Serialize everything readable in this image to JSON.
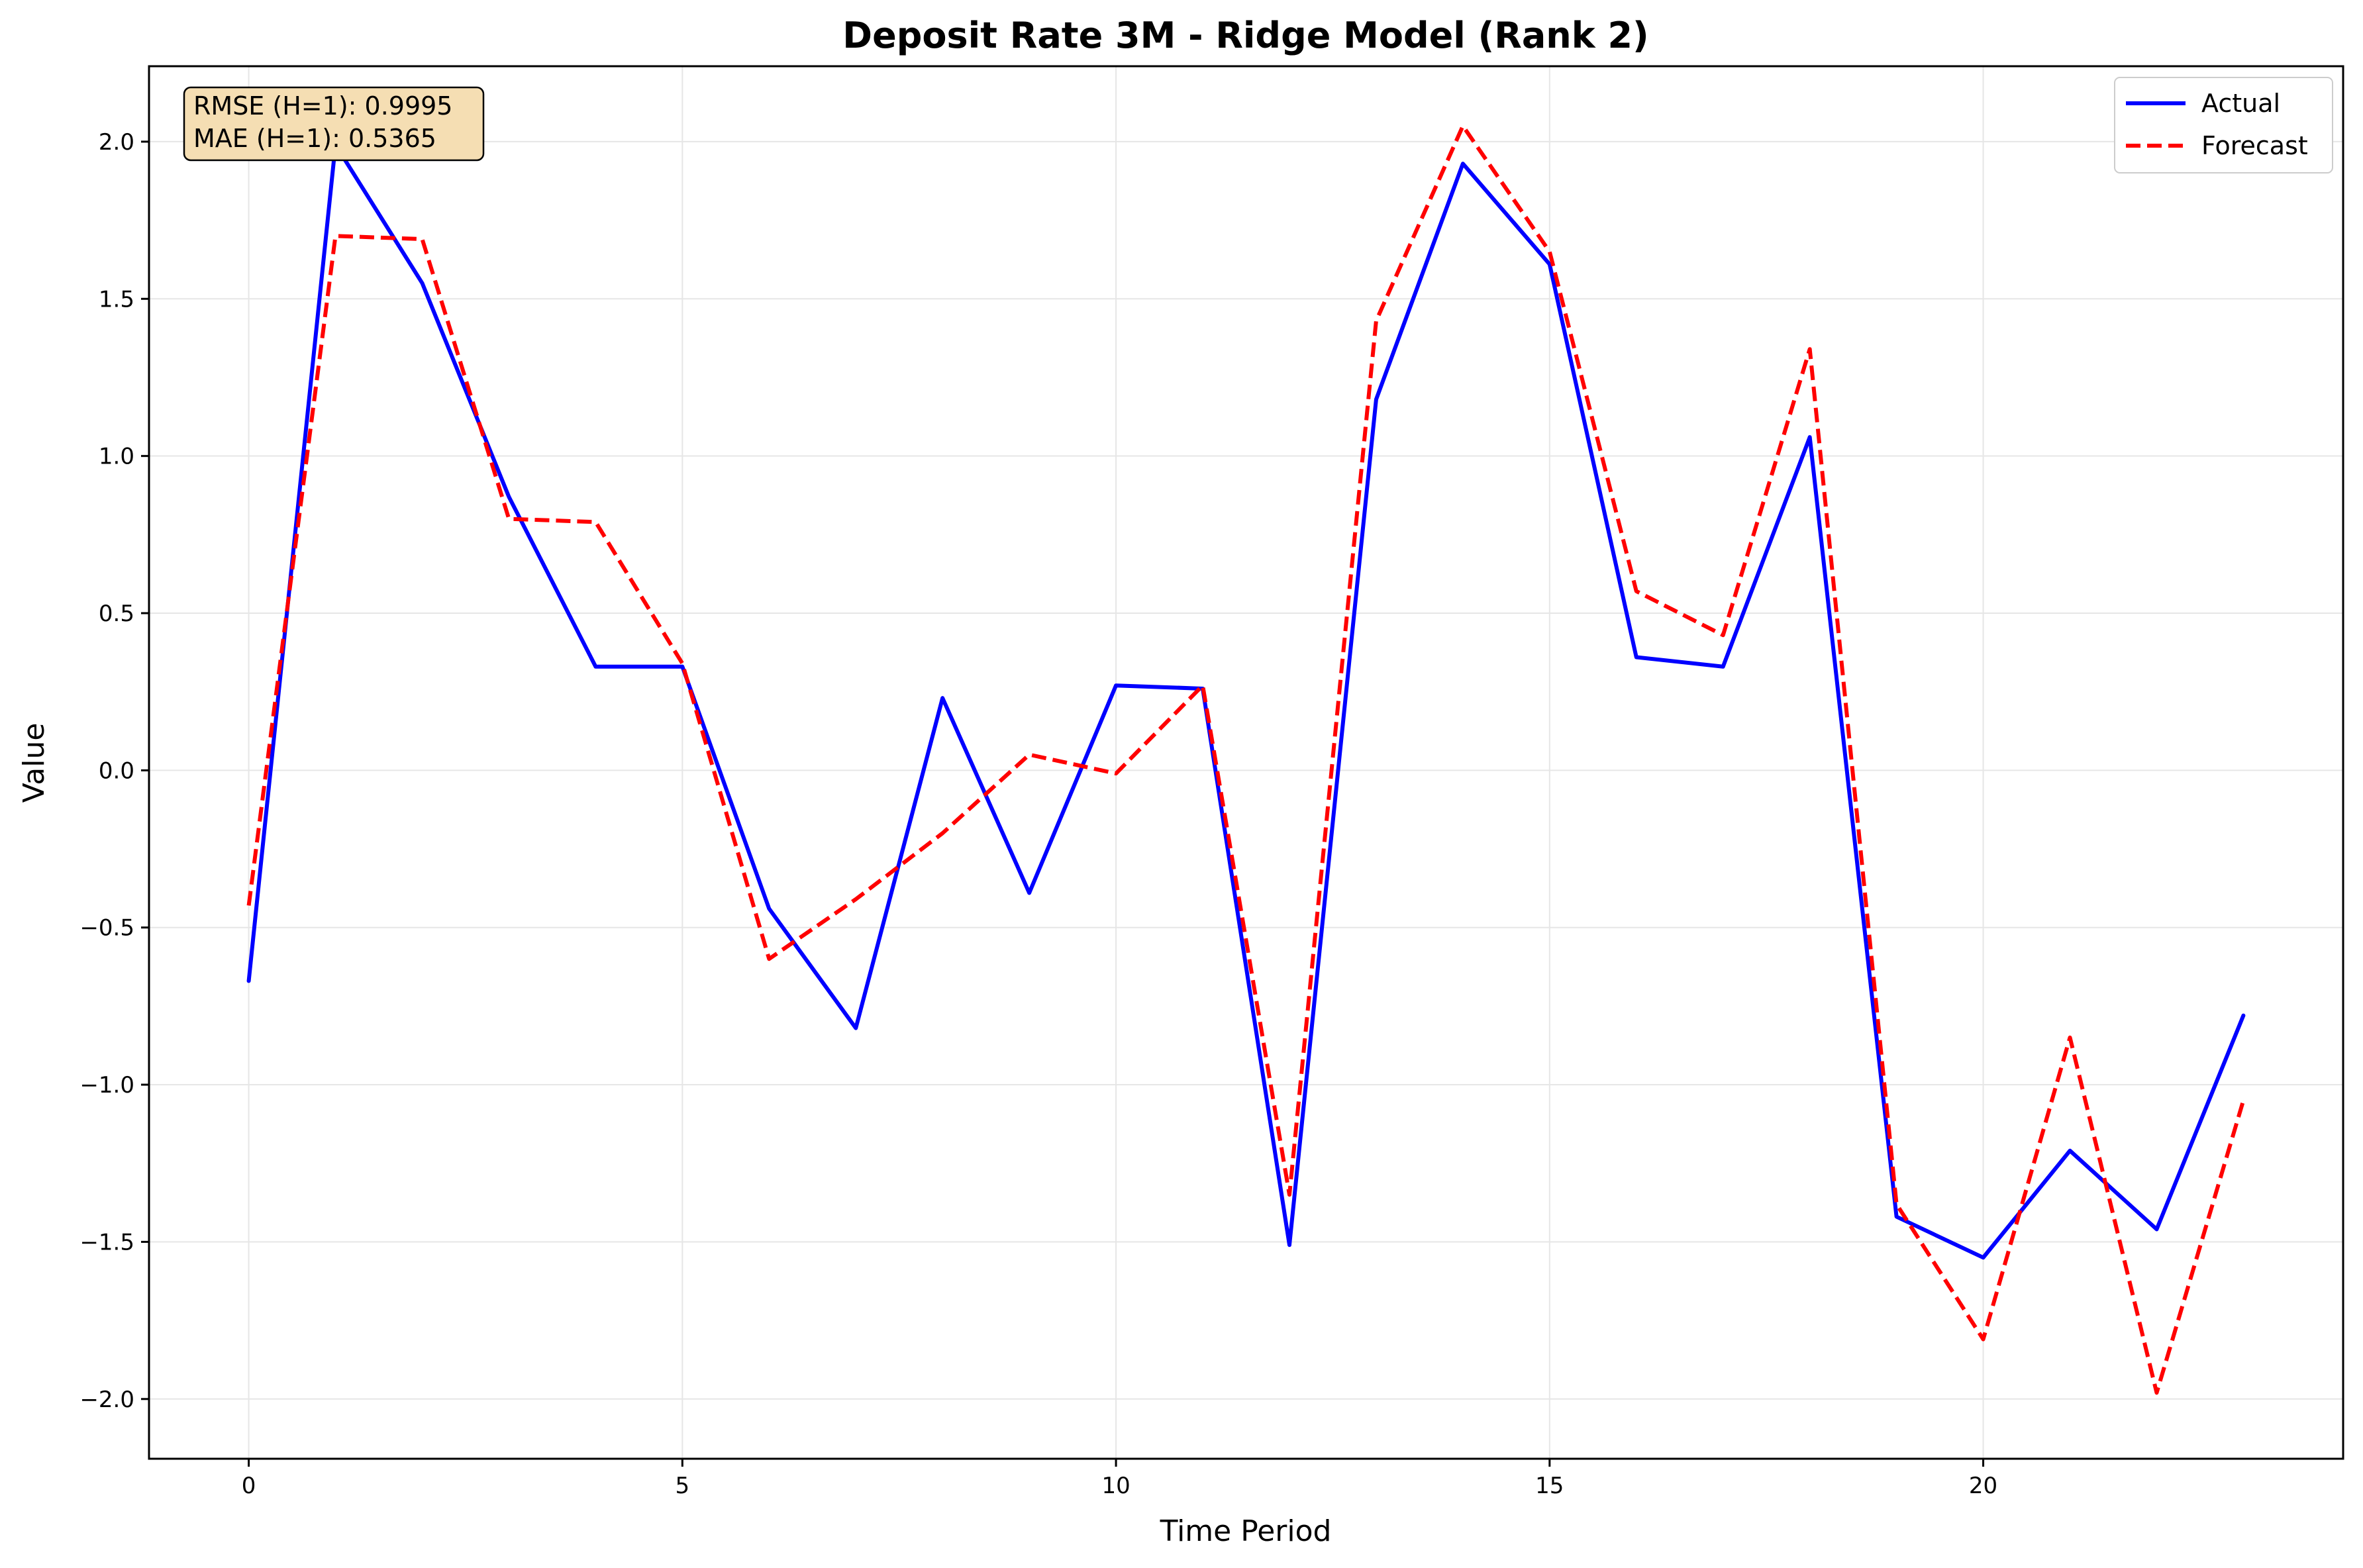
{
  "chart_data": {
    "type": "line",
    "title": "Deposit Rate 3M - Ridge Model (Rank 2)",
    "xlabel": "Time Period",
    "ylabel": "Value",
    "xlim": [
      -1.15,
      24.15
    ],
    "ylim": [
      -2.19,
      2.24
    ],
    "xticks": [
      0,
      5,
      10,
      15,
      20
    ],
    "yticks": [
      2.0,
      1.5,
      1.0,
      0.5,
      0.0,
      -0.5,
      -1.0,
      -1.5,
      -2.0
    ],
    "xtick_labels": [
      "0",
      "5",
      "10",
      "15",
      "20"
    ],
    "ytick_labels": [
      "2.0",
      "1.5",
      "1.0",
      "0.5",
      "0.0",
      "−0.5",
      "−1.0",
      "−1.5",
      "−2.0"
    ],
    "grid": true,
    "legend_position": "top-right",
    "x": [
      0,
      1,
      2,
      3,
      4,
      5,
      6,
      7,
      8,
      9,
      10,
      11,
      12,
      13,
      14,
      15,
      16,
      17,
      18,
      19,
      20,
      21,
      22,
      23
    ],
    "series": [
      {
        "name": "Actual",
        "color": "#0000ff",
        "style": "solid",
        "values": [
          -0.67,
          1.99,
          1.55,
          0.87,
          0.33,
          0.33,
          -0.44,
          -0.82,
          0.23,
          -0.39,
          0.27,
          0.26,
          -1.51,
          1.18,
          1.93,
          1.61,
          0.36,
          0.33,
          1.06,
          -1.42,
          -1.55,
          -1.21,
          -1.46,
          -0.78
        ]
      },
      {
        "name": "Forecast",
        "color": "#ff0000",
        "style": "dashed",
        "values": [
          -0.43,
          1.7,
          1.69,
          0.8,
          0.79,
          0.34,
          -0.6,
          -0.41,
          -0.2,
          0.05,
          -0.01,
          0.27,
          -1.35,
          1.43,
          2.05,
          1.65,
          0.57,
          0.43,
          1.34,
          -1.38,
          -1.81,
          -0.85,
          -1.98,
          -1.05
        ]
      }
    ],
    "annotations": {
      "rmse_label": "RMSE (H=1): 0.9995",
      "mae_label": "MAE (H=1): 0.5365",
      "box_color": "#f5deb3"
    }
  }
}
